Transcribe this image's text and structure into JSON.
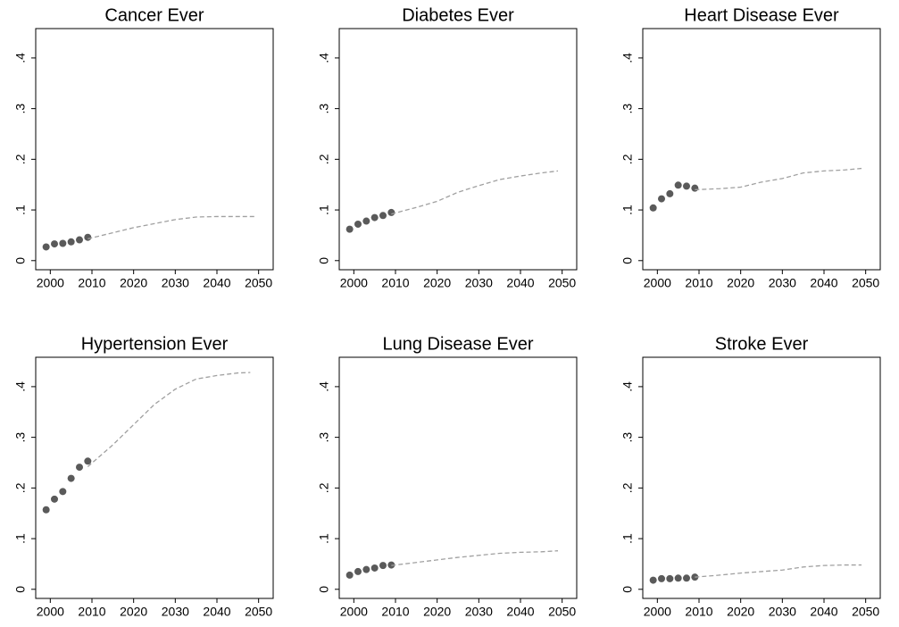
{
  "chart_data": [
    {
      "type": "scatter",
      "title": "Cancer Ever",
      "xlim": [
        1996.5,
        2053.5
      ],
      "ylim": [
        -0.018,
        0.458
      ],
      "xticks": [
        2000,
        2010,
        2020,
        2030,
        2040,
        2050
      ],
      "yticks": [
        0,
        {
          "value": 0.1,
          "label": ".1"
        },
        {
          "value": 0.2,
          "label": ".2"
        },
        {
          "value": 0.3,
          "label": ".3"
        },
        {
          "value": 0.4,
          "label": ".4"
        }
      ],
      "series": [
        {
          "type": "scatter",
          "color": "#5a5a5a",
          "x": [
            1999,
            2001,
            2003,
            2005,
            2007,
            2009
          ],
          "values": [
            0.027,
            0.033,
            0.034,
            0.037,
            0.041,
            0.046
          ]
        },
        {
          "type": "line",
          "line_style": "dashed",
          "color": "#a0a0a0",
          "x": [
            2009,
            2015,
            2020,
            2025,
            2030,
            2035,
            2040,
            2045,
            2049
          ],
          "values": [
            0.043,
            0.055,
            0.065,
            0.073,
            0.081,
            0.086,
            0.087,
            0.087,
            0.087
          ]
        }
      ]
    },
    {
      "type": "scatter",
      "title": "Diabetes Ever",
      "xlim": [
        1996.5,
        2053.5
      ],
      "ylim": [
        -0.018,
        0.458
      ],
      "xticks": [
        2000,
        2010,
        2020,
        2030,
        2040,
        2050
      ],
      "yticks": [
        0,
        {
          "value": 0.1,
          "label": ".1"
        },
        {
          "value": 0.2,
          "label": ".2"
        },
        {
          "value": 0.3,
          "label": ".3"
        },
        {
          "value": 0.4,
          "label": ".4"
        }
      ],
      "series": [
        {
          "type": "scatter",
          "color": "#5a5a5a",
          "x": [
            1999,
            2001,
            2003,
            2005,
            2007,
            2009
          ],
          "values": [
            0.062,
            0.072,
            0.078,
            0.085,
            0.089,
            0.095
          ]
        },
        {
          "type": "line",
          "line_style": "dashed",
          "color": "#a0a0a0",
          "x": [
            2009,
            2015,
            2020,
            2025,
            2030,
            2035,
            2040,
            2045,
            2049
          ],
          "values": [
            0.092,
            0.105,
            0.117,
            0.135,
            0.148,
            0.16,
            0.167,
            0.173,
            0.177
          ]
        }
      ]
    },
    {
      "type": "scatter",
      "title": "Heart Disease Ever",
      "xlim": [
        1996.5,
        2053.5
      ],
      "ylim": [
        -0.018,
        0.458
      ],
      "xticks": [
        2000,
        2010,
        2020,
        2030,
        2040,
        2050
      ],
      "yticks": [
        0,
        {
          "value": 0.1,
          "label": ".1"
        },
        {
          "value": 0.2,
          "label": ".2"
        },
        {
          "value": 0.3,
          "label": ".3"
        },
        {
          "value": 0.4,
          "label": ".4"
        }
      ],
      "series": [
        {
          "type": "scatter",
          "color": "#5a5a5a",
          "x": [
            1999,
            2001,
            2003,
            2005,
            2007,
            2009
          ],
          "values": [
            0.104,
            0.122,
            0.132,
            0.149,
            0.147,
            0.143
          ]
        },
        {
          "type": "line",
          "line_style": "dashed",
          "color": "#a0a0a0",
          "x": [
            2009,
            2015,
            2020,
            2025,
            2030,
            2035,
            2040,
            2045,
            2049
          ],
          "values": [
            0.14,
            0.142,
            0.145,
            0.155,
            0.162,
            0.173,
            0.177,
            0.179,
            0.182
          ]
        }
      ]
    },
    {
      "type": "scatter",
      "title": "Hypertension Ever",
      "xlim": [
        1996.5,
        2053.5
      ],
      "ylim": [
        -0.018,
        0.458
      ],
      "xticks": [
        2000,
        2010,
        2020,
        2030,
        2040,
        2050
      ],
      "yticks": [
        0,
        {
          "value": 0.1,
          "label": ".1"
        },
        {
          "value": 0.2,
          "label": ".2"
        },
        {
          "value": 0.3,
          "label": ".3"
        },
        {
          "value": 0.4,
          "label": ".4"
        }
      ],
      "series": [
        {
          "type": "scatter",
          "color": "#5a5a5a",
          "x": [
            1999,
            2001,
            2003,
            2005,
            2007,
            2009
          ],
          "values": [
            0.157,
            0.178,
            0.193,
            0.219,
            0.241,
            0.253
          ]
        },
        {
          "type": "line",
          "line_style": "dashed",
          "color": "#a0a0a0",
          "x": [
            2009,
            2015,
            2020,
            2025,
            2030,
            2035,
            2040,
            2045,
            2048
          ],
          "values": [
            0.242,
            0.285,
            0.325,
            0.365,
            0.395,
            0.415,
            0.422,
            0.427,
            0.428
          ]
        }
      ]
    },
    {
      "type": "scatter",
      "title": "Lung Disease Ever",
      "xlim": [
        1996.5,
        2053.5
      ],
      "ylim": [
        -0.018,
        0.458
      ],
      "xticks": [
        2000,
        2010,
        2020,
        2030,
        2040,
        2050
      ],
      "yticks": [
        0,
        {
          "value": 0.1,
          "label": ".1"
        },
        {
          "value": 0.2,
          "label": ".2"
        },
        {
          "value": 0.3,
          "label": ".3"
        },
        {
          "value": 0.4,
          "label": ".4"
        }
      ],
      "series": [
        {
          "type": "scatter",
          "color": "#5a5a5a",
          "x": [
            1999,
            2001,
            2003,
            2005,
            2007,
            2009
          ],
          "values": [
            0.028,
            0.035,
            0.039,
            0.042,
            0.047,
            0.048
          ]
        },
        {
          "type": "line",
          "line_style": "dashed",
          "color": "#a0a0a0",
          "x": [
            2009,
            2015,
            2020,
            2025,
            2030,
            2035,
            2040,
            2045,
            2049
          ],
          "values": [
            0.047,
            0.053,
            0.058,
            0.063,
            0.067,
            0.071,
            0.073,
            0.074,
            0.076
          ]
        }
      ]
    },
    {
      "type": "scatter",
      "title": "Stroke Ever",
      "xlim": [
        1996.5,
        2053.5
      ],
      "ylim": [
        -0.018,
        0.458
      ],
      "xticks": [
        2000,
        2010,
        2020,
        2030,
        2040,
        2050
      ],
      "yticks": [
        0,
        {
          "value": 0.1,
          "label": ".1"
        },
        {
          "value": 0.2,
          "label": ".2"
        },
        {
          "value": 0.3,
          "label": ".3"
        },
        {
          "value": 0.4,
          "label": ".4"
        }
      ],
      "series": [
        {
          "type": "scatter",
          "color": "#5a5a5a",
          "x": [
            1999,
            2001,
            2003,
            2005,
            2007,
            2009
          ],
          "values": [
            0.018,
            0.021,
            0.021,
            0.022,
            0.022,
            0.024
          ]
        },
        {
          "type": "line",
          "line_style": "dashed",
          "color": "#a0a0a0",
          "x": [
            2009,
            2015,
            2020,
            2025,
            2030,
            2035,
            2040,
            2045,
            2049
          ],
          "values": [
            0.024,
            0.028,
            0.032,
            0.035,
            0.038,
            0.044,
            0.047,
            0.048,
            0.048
          ]
        }
      ]
    }
  ]
}
